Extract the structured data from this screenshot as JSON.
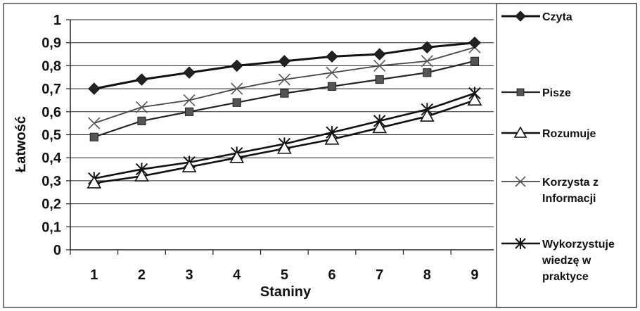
{
  "chart_data": {
    "type": "line",
    "x": [
      1,
      2,
      3,
      4,
      5,
      6,
      7,
      8,
      9
    ],
    "xlabel": "Staniny",
    "ylabel": "Łatwość",
    "ylim": [
      0,
      1
    ],
    "yticks": [
      "0",
      "0,1",
      "0,2",
      "0,3",
      "0,4",
      "0,5",
      "0,6",
      "0,7",
      "0,8",
      "0,9",
      "1"
    ],
    "xticks": [
      "1",
      "2",
      "3",
      "4",
      "5",
      "6",
      "7",
      "8",
      "9"
    ],
    "grid": "horizontal",
    "legend_position": "right",
    "series": [
      {
        "name": "Czyta",
        "legend_lines": [
          "Czyta"
        ],
        "marker": "diamond",
        "values": [
          0.7,
          0.74,
          0.77,
          0.8,
          0.82,
          0.84,
          0.85,
          0.88,
          0.9
        ]
      },
      {
        "name": "Pisze",
        "legend_lines": [
          "Pisze"
        ],
        "marker": "square",
        "values": [
          0.49,
          0.56,
          0.6,
          0.64,
          0.68,
          0.71,
          0.74,
          0.77,
          0.82
        ]
      },
      {
        "name": "Rozumuje",
        "legend_lines": [
          "Rozumuje"
        ],
        "marker": "triangle",
        "values": [
          0.29,
          0.32,
          0.36,
          0.4,
          0.44,
          0.48,
          0.53,
          0.58,
          0.65
        ]
      },
      {
        "name": "Korzysta z Informacji",
        "legend_lines": [
          "Korzysta z",
          "Informacji"
        ],
        "marker": "x",
        "values": [
          0.55,
          0.62,
          0.65,
          0.7,
          0.74,
          0.77,
          0.8,
          0.82,
          0.88
        ]
      },
      {
        "name": "Wykorzystuje wiedzę w praktyce",
        "legend_lines": [
          "Wykorzystuje",
          "wiedzę w",
          "praktyce"
        ],
        "marker": "asterisk",
        "values": [
          0.31,
          0.35,
          0.38,
          0.42,
          0.46,
          0.51,
          0.56,
          0.61,
          0.68
        ]
      }
    ]
  }
}
